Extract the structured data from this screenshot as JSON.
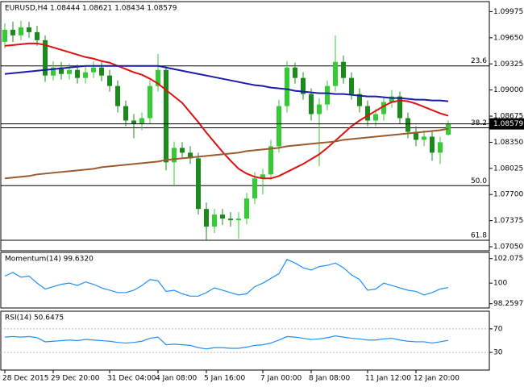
{
  "chart_data": [
    {
      "type": "candlestick",
      "title": "EURUSD,H4  1.08444 1.08621 1.08434 1.08579",
      "categories": [
        "28 Dec 2015",
        null,
        null,
        null,
        null,
        null,
        "29 Dec 20:00",
        null,
        null,
        null,
        null,
        null,
        null,
        "31 Dec 04:00",
        null,
        null,
        null,
        null,
        null,
        "4 Jan 08:00",
        null,
        null,
        null,
        null,
        null,
        "5 Jan 16:00",
        null,
        null,
        null,
        null,
        null,
        null,
        "7 Jan 00:00",
        null,
        null,
        null,
        null,
        null,
        "8 Jan 08:00",
        null,
        null,
        null,
        null,
        null,
        null,
        "11 Jan 12:00",
        null,
        null,
        null,
        null,
        null,
        "12 Jan 20:00",
        null,
        null,
        null,
        null
      ],
      "open": [
        1.096,
        1.0975,
        1.0968,
        1.0978,
        1.0972,
        1.0962,
        1.0918,
        1.0928,
        1.092,
        1.0925,
        1.0915,
        1.0922,
        1.0928,
        1.0918,
        1.0905,
        1.088,
        1.0862,
        1.0858,
        1.0865,
        1.0905,
        1.0925,
        1.081,
        1.0828,
        1.0822,
        1.0815,
        1.0752,
        1.073,
        1.0745,
        1.074,
        1.0738,
        1.074,
        1.0765,
        1.079,
        1.0795,
        1.083,
        1.088,
        1.0928,
        1.0915,
        1.0895,
        1.087,
        1.0882,
        1.0905,
        1.0935,
        1.0915,
        1.0895,
        1.088,
        1.0862,
        1.087,
        1.0885,
        1.0892,
        1.0865,
        1.0848,
        1.0838,
        1.0842,
        1.0822,
        1.08444
      ],
      "high": [
        1.0983,
        1.0985,
        1.0986,
        1.0985,
        1.098,
        1.0968,
        1.0936,
        1.0935,
        1.0933,
        1.0932,
        1.093,
        1.0936,
        1.0935,
        1.0925,
        1.0912,
        1.0887,
        1.087,
        1.0872,
        1.0912,
        1.0945,
        1.093,
        1.0836,
        1.0835,
        1.083,
        1.0822,
        1.076,
        1.0752,
        1.0752,
        1.0748,
        1.0748,
        1.0772,
        1.0798,
        1.0802,
        1.0838,
        1.0888,
        1.0936,
        1.0934,
        1.0922,
        1.0902,
        1.089,
        1.0912,
        1.0968,
        1.0943,
        1.0922,
        1.0902,
        1.0887,
        1.0877,
        1.0892,
        1.09,
        1.0898,
        1.0872,
        1.0855,
        1.085,
        1.0848,
        1.0842,
        1.08621
      ],
      "low": [
        1.0952,
        1.096,
        1.0962,
        1.0965,
        1.0955,
        1.091,
        1.0912,
        1.0913,
        1.0913,
        1.0908,
        1.0908,
        1.0915,
        1.0911,
        1.0898,
        1.0872,
        1.0855,
        1.084,
        1.085,
        1.0858,
        1.0898,
        1.08,
        1.078,
        1.0815,
        1.0808,
        1.0745,
        1.0712,
        1.0722,
        1.0732,
        1.073,
        1.0715,
        1.0733,
        1.0758,
        1.077,
        1.0788,
        1.0822,
        1.0872,
        1.0908,
        1.0888,
        1.0862,
        1.0805,
        1.0875,
        1.0898,
        1.0908,
        1.0888,
        1.0872,
        1.0855,
        1.0855,
        1.0862,
        1.0878,
        1.0858,
        1.084,
        1.083,
        1.083,
        1.0812,
        1.0808,
        1.08434
      ],
      "close": [
        1.0975,
        1.0968,
        1.0978,
        1.0972,
        1.0962,
        1.0918,
        1.0928,
        1.092,
        1.0925,
        1.0915,
        1.0922,
        1.0928,
        1.0918,
        1.0905,
        1.088,
        1.0862,
        1.0858,
        1.0865,
        1.0905,
        1.0925,
        1.081,
        1.0828,
        1.0822,
        1.0815,
        1.0752,
        1.073,
        1.0745,
        1.074,
        1.0738,
        1.074,
        1.0765,
        1.079,
        1.0795,
        1.083,
        1.088,
        1.0928,
        1.0915,
        1.0895,
        1.087,
        1.0882,
        1.0905,
        1.0935,
        1.0915,
        1.0895,
        1.088,
        1.0862,
        1.087,
        1.0885,
        1.0892,
        1.0865,
        1.0848,
        1.0838,
        1.0842,
        1.0822,
        1.0835,
        1.08579
      ],
      "up_color": "#33cc33",
      "down_color": "#1a8a1a",
      "series": [
        {
          "color": "#e01010",
          "values": [
            1.0955,
            1.0956,
            1.0957,
            1.0958,
            1.0958,
            1.0956,
            1.0953,
            1.095,
            1.0947,
            1.0944,
            1.0941,
            1.0939,
            1.0936,
            1.0934,
            1.093,
            1.0926,
            1.0922,
            1.0919,
            1.0914,
            1.0908,
            1.09,
            1.0892,
            1.0884,
            1.0872,
            1.086,
            1.0847,
            1.0835,
            1.0823,
            1.0812,
            1.0802,
            1.0796,
            1.0792,
            1.079,
            1.079,
            1.0793,
            1.0798,
            1.0803,
            1.0808,
            1.0814,
            1.082,
            1.0828,
            1.0837,
            1.0846,
            1.0855,
            1.0862,
            1.0868,
            1.0874,
            1.088,
            1.0885,
            1.0887,
            1.0886,
            1.0883,
            1.0879,
            1.0875,
            1.0871,
            1.0868
          ]
        },
        {
          "color": "#1c1caa",
          "values": [
            1.092,
            1.0921,
            1.0922,
            1.0923,
            1.0924,
            1.0925,
            1.0926,
            1.0927,
            1.0928,
            1.0929,
            1.093,
            1.093,
            1.093,
            1.093,
            1.093,
            1.093,
            1.093,
            1.093,
            1.093,
            1.093,
            1.0928,
            1.0926,
            1.0924,
            1.0922,
            1.092,
            1.0918,
            1.0916,
            1.0914,
            1.0912,
            1.091,
            1.0908,
            1.0906,
            1.0905,
            1.0903,
            1.0902,
            1.0901,
            1.0899,
            1.0898,
            1.0897,
            1.0896,
            1.0896,
            1.0895,
            1.0895,
            1.0894,
            1.0893,
            1.0892,
            1.0892,
            1.0891,
            1.089,
            1.089,
            1.0889,
            1.0888,
            1.0888,
            1.0887,
            1.0887,
            1.0886
          ]
        },
        {
          "color": "#9a5a2e",
          "values": [
            1.079,
            1.0791,
            1.0792,
            1.0793,
            1.0795,
            1.0796,
            1.0797,
            1.0798,
            1.0799,
            1.08,
            1.0801,
            1.0802,
            1.0804,
            1.0805,
            1.0806,
            1.0807,
            1.0808,
            1.0809,
            1.081,
            1.0811,
            1.0813,
            1.0814,
            1.0815,
            1.0816,
            1.0817,
            1.0818,
            1.0819,
            1.082,
            1.0821,
            1.0822,
            1.0824,
            1.0825,
            1.0826,
            1.0827,
            1.0828,
            1.083,
            1.0831,
            1.0832,
            1.0833,
            1.0834,
            1.0835,
            1.0836,
            1.0838,
            1.0839,
            1.084,
            1.0841,
            1.0842,
            1.0843,
            1.0844,
            1.0845,
            1.0846,
            1.0847,
            1.0848,
            1.0849,
            1.085,
            1.0852
          ]
        }
      ],
      "levels": [
        {
          "label": "23.6",
          "value": 1.093
        },
        {
          "label": "38.2",
          "value": 1.0853
        },
        {
          "label": "50.0",
          "value": 1.0781
        },
        {
          "label": "61.8",
          "value": 1.0713
        }
      ],
      "current_price": 1.08579,
      "ylim": [
        1.07,
        1.101
      ],
      "yticks": [
        1.09975,
        {
          "value": 1.0965,
          "label": "1.09650"
        },
        1.09325,
        {
          "value": 1.09,
          "label": "1.09000"
        },
        1.08675,
        {
          "value": 1.0835,
          "label": "1.08350"
        },
        1.08025,
        {
          "value": 1.077,
          "label": "1.07700"
        },
        1.07375,
        {
          "value": 1.0705,
          "label": "1.07050"
        }
      ]
    },
    {
      "type": "line",
      "title": "Momentum(14) 99.6320",
      "color": "#1e90ff",
      "values": [
        100.6,
        100.9,
        100.5,
        100.6,
        100.0,
        99.5,
        99.7,
        99.9,
        100.0,
        99.8,
        100.1,
        99.9,
        99.6,
        99.4,
        99.2,
        99.2,
        99.4,
        99.8,
        100.3,
        100.2,
        99.3,
        99.4,
        99.1,
        98.9,
        98.9,
        99.2,
        99.6,
        99.4,
        99.2,
        99.0,
        99.1,
        99.7,
        100.0,
        100.4,
        100.8,
        102.0,
        101.7,
        101.3,
        101.1,
        101.4,
        101.5,
        101.7,
        101.3,
        100.7,
        100.3,
        99.4,
        99.5,
        100.0,
        99.8,
        99.6,
        99.4,
        99.3,
        99.0,
        99.2,
        99.5,
        99.632
      ],
      "ylim": [
        97.9,
        102.6
      ],
      "yticks": [
        102.0753,
        100,
        98.2597
      ]
    },
    {
      "type": "line",
      "title": "RSI(14) 50.6475",
      "color": "#1e90ff",
      "values": [
        56,
        57,
        56,
        57,
        55,
        48,
        49,
        50,
        51,
        50,
        52,
        51,
        50,
        49,
        47,
        46,
        47,
        49,
        54,
        56,
        43,
        44,
        43,
        42,
        38,
        36,
        38,
        38,
        37,
        37,
        39,
        42,
        43,
        46,
        51,
        57,
        56,
        54,
        52,
        53,
        55,
        58,
        56,
        54,
        53,
        51,
        51,
        53,
        54,
        51,
        49,
        48,
        48,
        46,
        48,
        50.6475
      ],
      "ylim": [
        0,
        100
      ],
      "yticks": [
        70,
        30
      ]
    }
  ]
}
